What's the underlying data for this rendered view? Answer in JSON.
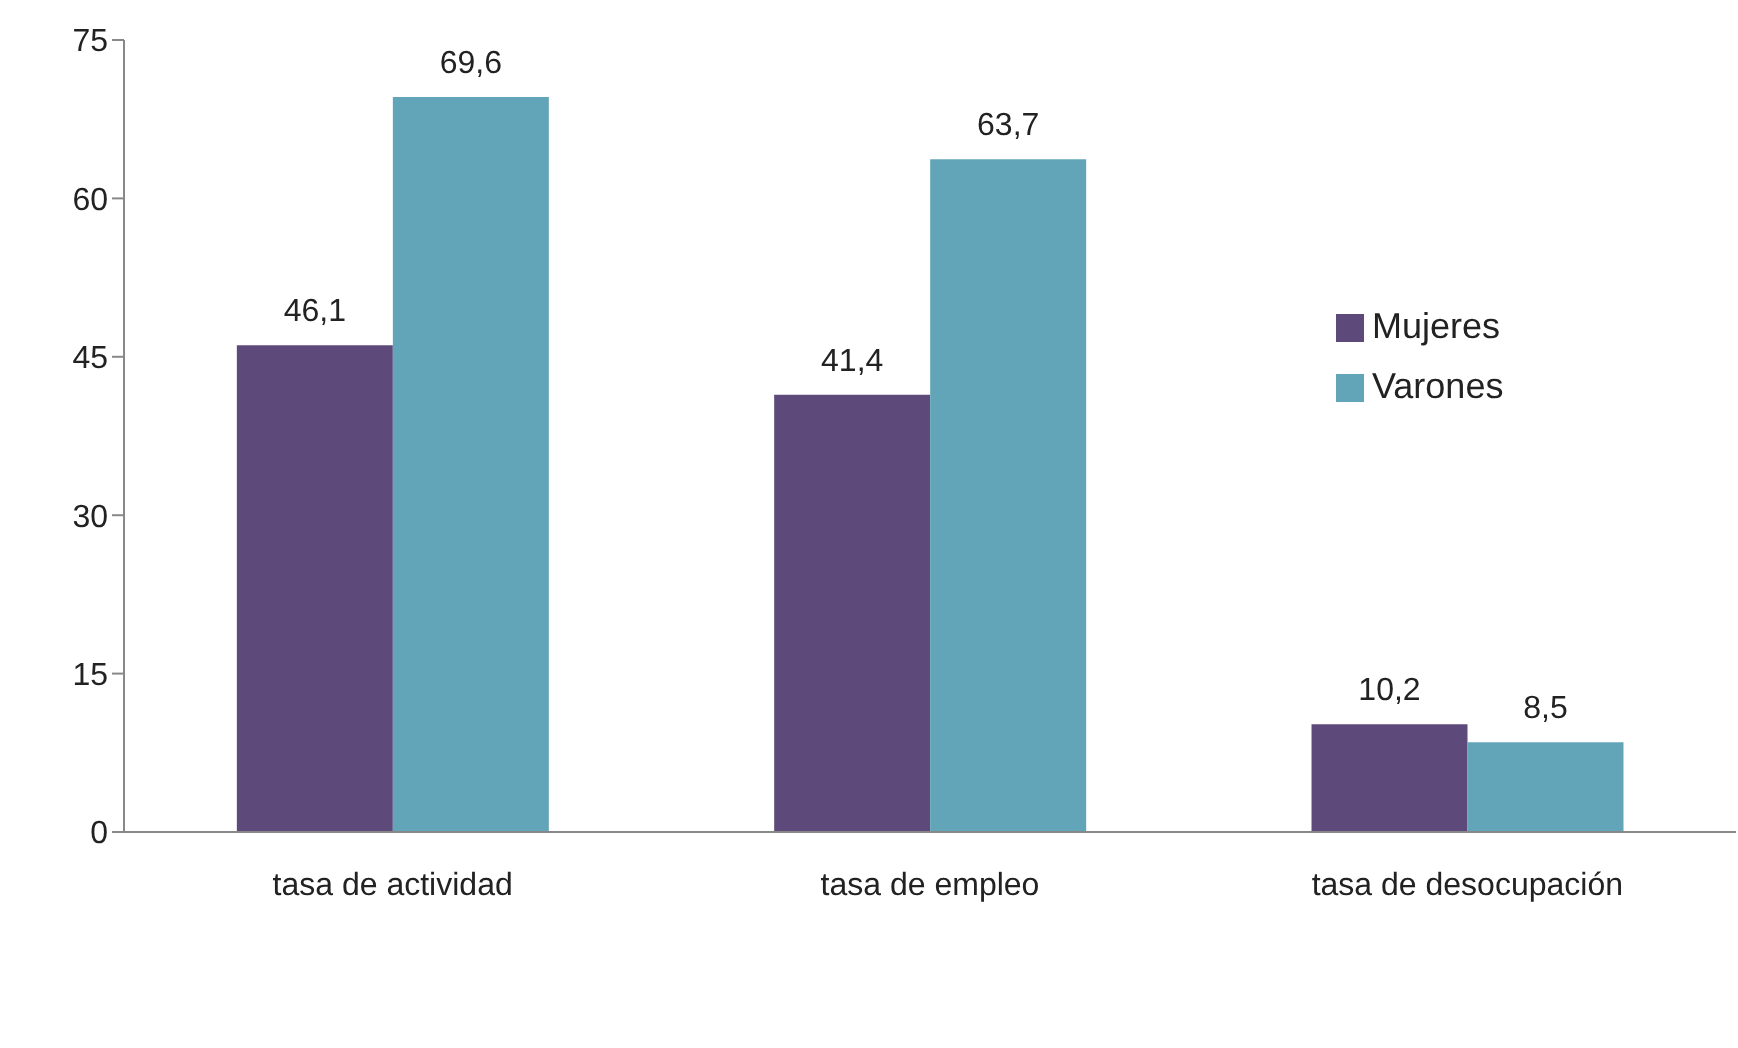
{
  "chart_data": {
    "type": "bar",
    "categories": [
      "tasa de actividad",
      "tasa de empleo",
      "tasa de desocupación"
    ],
    "series": [
      {
        "name": "Mujeres",
        "color": "#5e4a7a",
        "values": [
          46.1,
          41.4,
          10.2
        ],
        "value_labels": [
          "46,1",
          "41,4",
          "10,2"
        ]
      },
      {
        "name": "Varones",
        "color": "#62a5b8",
        "values": [
          69.6,
          63.7,
          8.5
        ],
        "value_labels": [
          "69,6",
          "63,7",
          "8,5"
        ]
      }
    ],
    "ylim": [
      0,
      75
    ],
    "yticks": [
      0,
      15,
      30,
      45,
      60,
      75
    ],
    "grid": false,
    "legend": "right"
  }
}
